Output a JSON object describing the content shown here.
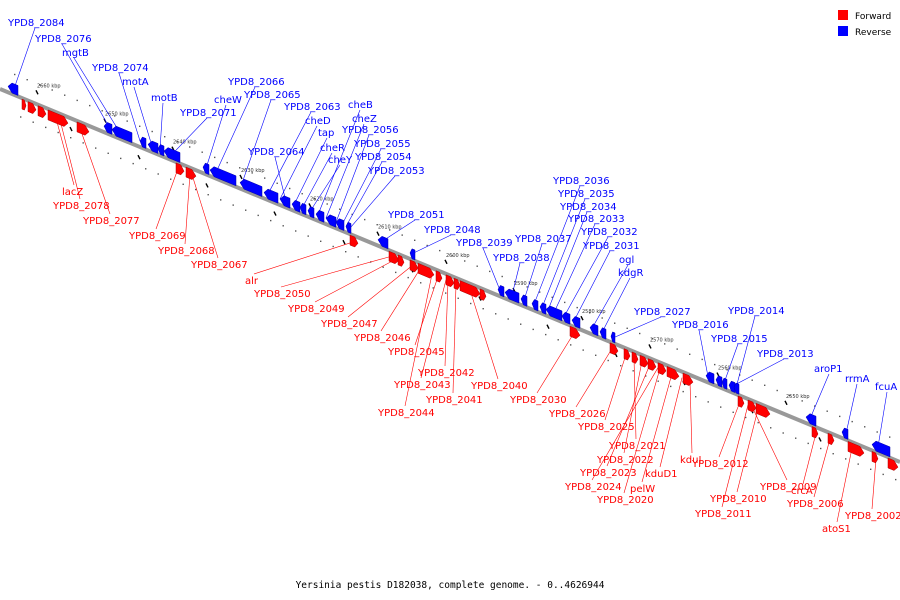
{
  "legend": [
    {
      "label": "Forward",
      "color": "#ff0000"
    },
    {
      "label": "Reverse",
      "color": "#0000ff"
    }
  ],
  "colors": {
    "forward": "#ff0000",
    "reverse": "#0000ff",
    "backbone": "#999999"
  },
  "caption": "Yersinia pestis D182038, complete genome. - 0..4626944",
  "ticks": [
    "2660 kbp",
    "2650 kbp",
    "2640 kbp",
    "2630 kbp",
    "2620 kbp",
    "2610 kbp",
    "2600 kbp",
    "2590 kbp",
    "2580 kbp",
    "2570 kbp",
    "2560 kbp",
    "2550 kbp"
  ],
  "reverse_labels": [
    "YPD8_2084",
    "YPD8_2076",
    "mgtB",
    "YPD8_2074",
    "motA",
    "motB",
    "YPD8_2071",
    "cheW",
    "YPD8_2066",
    "YPD8_2065",
    "YPD8_2063",
    "cheD",
    "tap",
    "cheR",
    "cheY",
    "YPD8_2064",
    "cheB",
    "cheZ",
    "YPD8_2056",
    "YPD8_2055",
    "YPD8_2054",
    "YPD8_2053",
    "YPD8_2051",
    "YPD8_2048",
    "YPD8_2039",
    "YPD8_2038",
    "YPD8_2037",
    "YPD8_2036",
    "YPD8_2035",
    "YPD8_2034",
    "YPD8_2033",
    "YPD8_2032",
    "YPD8_2031",
    "ogl",
    "kdgR",
    "YPD8_2027",
    "YPD8_2016",
    "YPD8_2014",
    "YPD8_2015",
    "YPD8_2013",
    "aroP1",
    "rrmA",
    "fcuA"
  ],
  "forward_labels": [
    "lacZ",
    "YPD8_2078",
    "YPD8_2077",
    "YPD8_2069",
    "YPD8_2068",
    "YPD8_2067",
    "alr",
    "YPD8_2050",
    "YPD8_2049",
    "YPD8_2047",
    "YPD8_2046",
    "YPD8_2045",
    "YPD8_2042",
    "YPD8_2043",
    "YPD8_2041",
    "YPD8_2044",
    "YPD8_2040",
    "YPD8_2030",
    "YPD8_2026",
    "YPD8_2025",
    "YPD8_2021",
    "YPD8_2022",
    "YPD8_2023",
    "YPD8_2024",
    "pelW",
    "YPD8_2020",
    "kduD1",
    "kduI",
    "YPD8_2012",
    "YPD8_2009",
    "YPD8_2010",
    "YPD8_2011",
    "crcA",
    "YPD8_2006",
    "atoS1",
    "YPD8_2002"
  ]
}
